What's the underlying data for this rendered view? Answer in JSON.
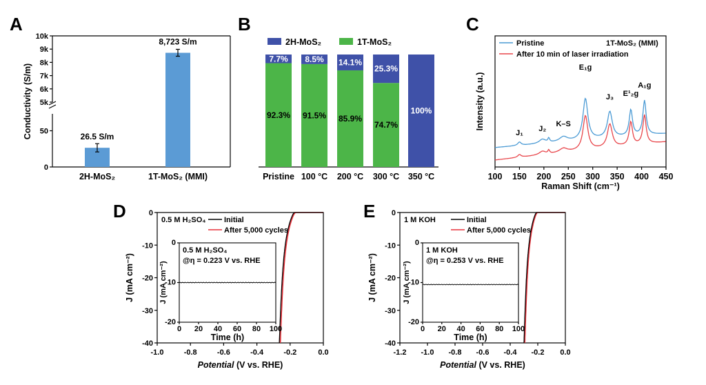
{
  "panels": {
    "A": "A",
    "B": "B",
    "C": "C",
    "D": "D",
    "E": "E"
  },
  "chart_data": [
    {
      "id": "A",
      "type": "bar",
      "categories": [
        "2H-MoS₂",
        "1T-MoS₂ (MMI)"
      ],
      "values": [
        26.5,
        8723
      ],
      "data_labels": [
        "26.5 S/m",
        "8,723 S/m"
      ],
      "errors": [
        5,
        120
      ],
      "ylabel": "Conductivity (S/m)",
      "yticks_low": [
        "0",
        "50"
      ],
      "yticks_high": [
        "5k",
        "6k",
        "7k",
        "8k",
        "9k",
        "10k"
      ],
      "ylim_low": [
        0,
        100
      ],
      "ylim_high": [
        5000,
        10000
      ],
      "bar_color": "#5b9bd5"
    },
    {
      "id": "B",
      "type": "bar",
      "stacked": true,
      "categories": [
        "Pristine",
        "100 °C",
        "200 °C",
        "300 °C",
        "350 °C"
      ],
      "series": [
        {
          "name": "2H-MoS₂",
          "color": "#3f51a8",
          "values": [
            7.7,
            8.5,
            14.1,
            25.3,
            100
          ],
          "labels": [
            "7.7%",
            "8.5%",
            "14.1%",
            "25.3%",
            "100%"
          ]
        },
        {
          "name": "1T-MoS₂",
          "color": "#4cb548",
          "values": [
            92.3,
            91.5,
            85.9,
            74.7,
            0
          ],
          "labels": [
            "92.3%",
            "91.5%",
            "85.9%",
            "74.7%",
            ""
          ]
        }
      ],
      "legend_position": "top"
    },
    {
      "id": "C",
      "type": "line",
      "xlabel": "Raman Shift (cm⁻¹)",
      "ylabel": "Intensity (a.u.)",
      "xlim": [
        100,
        450
      ],
      "xticks": [
        "100",
        "150",
        "200",
        "250",
        "300",
        "350",
        "400",
        "450"
      ],
      "annotation": "1T-MoS₂ (MMI)",
      "peaks": [
        {
          "label": "J₁",
          "x": 150
        },
        {
          "label": "J₂",
          "x": 197
        },
        {
          "label": "K–S",
          "x": 240
        },
        {
          "label": "E₁g",
          "x": 285
        },
        {
          "label": "J₃",
          "x": 335
        },
        {
          "label": "E¹₂g",
          "x": 378
        },
        {
          "label": "A₁g",
          "x": 406
        }
      ],
      "series": [
        {
          "name": "Pristine",
          "color": "#4a9ad4"
        },
        {
          "name": "After 10 min of laser irradiation",
          "color": "#e8454a"
        }
      ]
    },
    {
      "id": "D",
      "type": "line",
      "electrolyte": "0.5 M H₂SO₄",
      "xlabel_italic": "Potential",
      "xlabel_rest": " (V vs. RHE)",
      "ylabel": "J (mA cm⁻²)",
      "xlim": [
        -1.0,
        0.0
      ],
      "ylim": [
        -40,
        0
      ],
      "xticks": [
        "-1.0",
        "-0.8",
        "-0.6",
        "-0.4",
        "-0.2",
        "0.0"
      ],
      "yticks": [
        "0",
        "-10",
        "-20",
        "-30",
        "-40"
      ],
      "onset": -0.215,
      "span": 0.05,
      "series": [
        {
          "name": "Initial",
          "color": "#000000"
        },
        {
          "name": "After 5,000 cycles",
          "color": "#e8323a"
        }
      ],
      "inset": {
        "title": "0.5 M H₂SO₄",
        "condition": "@η = 0.223 V vs. RHE",
        "xlabel": "Time (h)",
        "ylabel": "J (mA cm⁻²)",
        "xlim": [
          0,
          100
        ],
        "ylim": [
          -20,
          0
        ],
        "xticks": [
          "0",
          "20",
          "40",
          "60",
          "80",
          "100"
        ],
        "yticks": [
          "0",
          "-10",
          "-20"
        ],
        "value": -10
      }
    },
    {
      "id": "E",
      "type": "line",
      "electrolyte": "1 M KOH",
      "xlabel_italic": "Potential",
      "xlabel_rest": " (V vs. RHE)",
      "ylabel": "J (mA cm⁻²)",
      "xlim": [
        -1.2,
        0.0
      ],
      "ylim": [
        -40,
        0
      ],
      "xticks": [
        "-1.2",
        "-1.0",
        "-0.8",
        "-0.6",
        "-0.4",
        "-0.2",
        "0.0"
      ],
      "yticks": [
        "0",
        "-10",
        "-20",
        "-30",
        "-40"
      ],
      "onset": -0.25,
      "span": 0.05,
      "series": [
        {
          "name": "Initial",
          "color": "#000000"
        },
        {
          "name": "After 5,000 cycles",
          "color": "#e8323a"
        }
      ],
      "inset": {
        "title": "1 M KOH",
        "condition": "@η = 0.253 V vs. RHE",
        "xlabel": "Time (h)",
        "ylabel": "J (mA cm⁻²)",
        "xlim": [
          0,
          100
        ],
        "ylim": [
          -20,
          0
        ],
        "xticks": [
          "0",
          "20",
          "40",
          "60",
          "80",
          "100"
        ],
        "yticks": [
          "0",
          "-10",
          "-20"
        ],
        "value": -10.5
      }
    }
  ]
}
